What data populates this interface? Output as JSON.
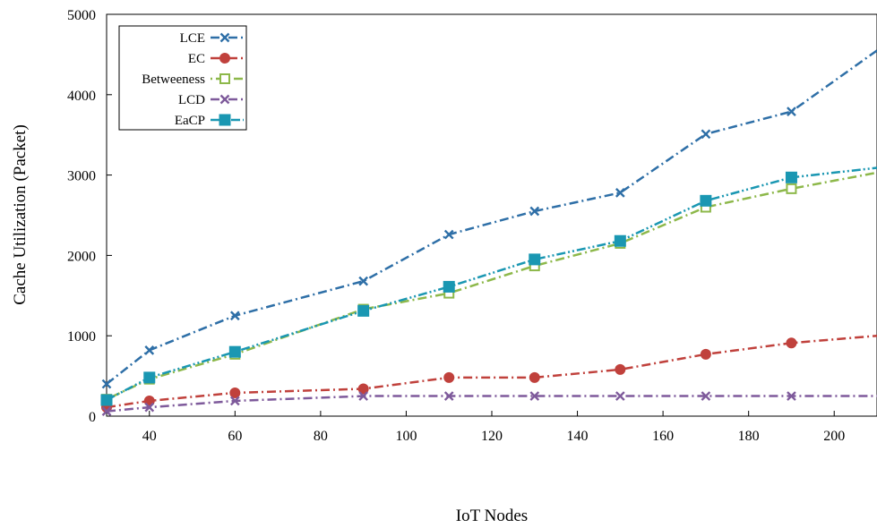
{
  "chart_data": {
    "type": "line",
    "title": "",
    "xlabel": "IoT Nodes",
    "ylabel": "Cache Utilization (Packet)",
    "xlim": [
      30,
      210
    ],
    "ylim": [
      0,
      5000
    ],
    "x_ticks": [
      40,
      60,
      80,
      100,
      120,
      140,
      160,
      180,
      200
    ],
    "y_ticks": [
      0,
      1000,
      2000,
      3000,
      4000,
      5000
    ],
    "grid": false,
    "legend_position": "top-left",
    "x": [
      30,
      40,
      60,
      90,
      110,
      130,
      150,
      170,
      190,
      210
    ],
    "series": [
      {
        "name": "LCE",
        "color": "#2e6fa7",
        "dash": "dash-dot",
        "marker": "x",
        "values": [
          400,
          820,
          1250,
          1680,
          2260,
          2550,
          2780,
          3510,
          3790,
          4550
        ]
      },
      {
        "name": "EC",
        "color": "#c0413c",
        "dash": "dash-dot",
        "marker": "filled-circle",
        "values": [
          110,
          190,
          290,
          340,
          480,
          480,
          580,
          770,
          910,
          1000
        ]
      },
      {
        "name": "Betweeness",
        "color": "#8db84a",
        "dash": "dot-dash",
        "marker": "open-square",
        "values": [
          210,
          460,
          770,
          1330,
          1530,
          1870,
          2150,
          2600,
          2830,
          3030
        ]
      },
      {
        "name": "LCD",
        "color": "#7e5a9b",
        "dash": "dash-dot",
        "marker": "x",
        "values": [
          60,
          110,
          190,
          250,
          250,
          250,
          250,
          250,
          250,
          250
        ]
      },
      {
        "name": "EaCP",
        "color": "#1a97b2",
        "dash": "dash-dot-dot",
        "marker": "filled-square",
        "values": [
          200,
          480,
          800,
          1310,
          1610,
          1950,
          2180,
          2680,
          2970,
          3090
        ]
      }
    ]
  }
}
